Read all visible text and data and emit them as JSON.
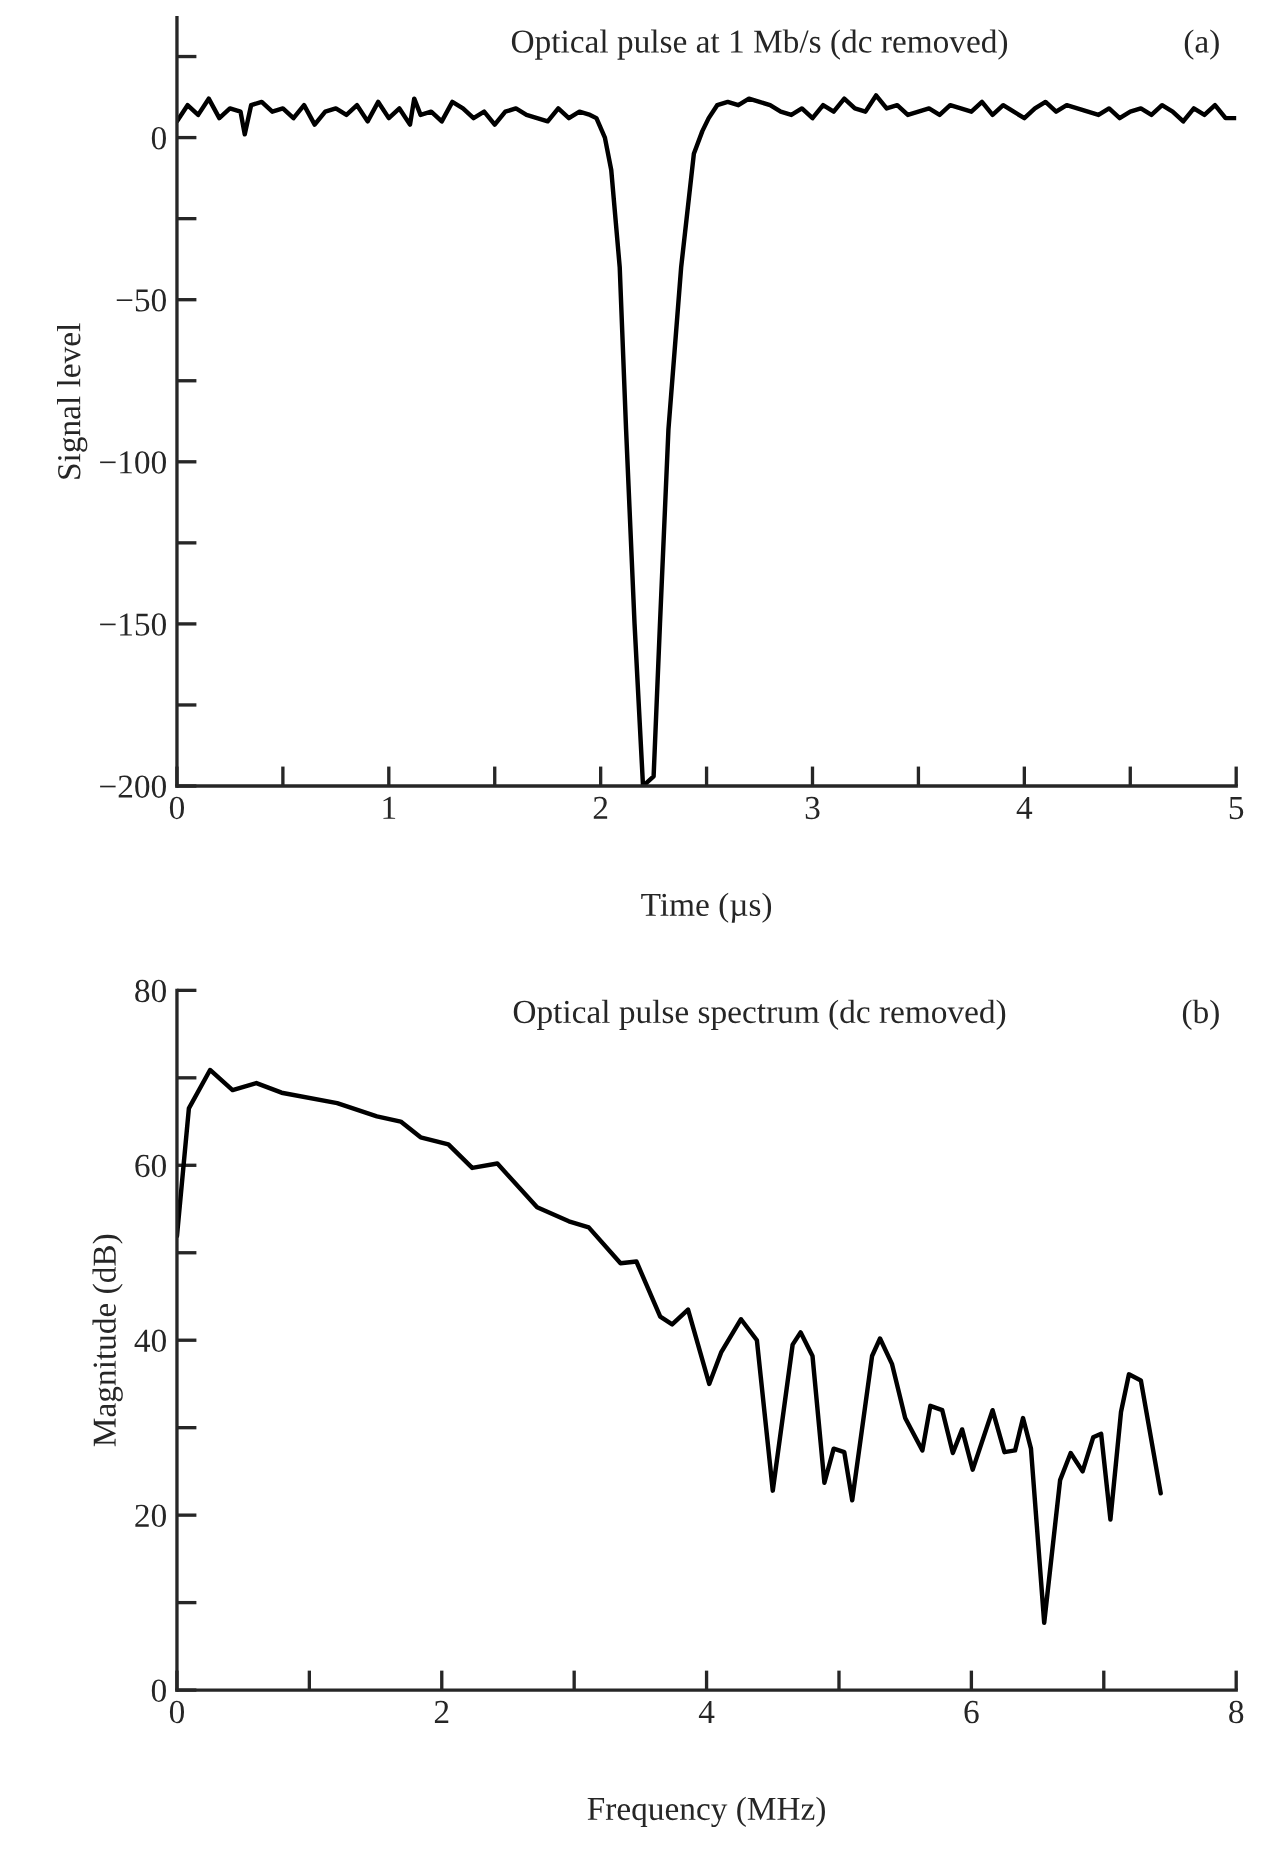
{
  "chart_data": [
    {
      "type": "line",
      "title": "Optical pulse at 1 Mb/s (dc removed)",
      "xlabel": "Time (µs)",
      "ylabel": "Signal level",
      "annotations": [
        "(a)"
      ],
      "x": [
        0,
        0.05,
        0.1,
        0.15,
        0.2,
        0.25,
        0.3,
        0.32,
        0.35,
        0.4,
        0.45,
        0.5,
        0.55,
        0.6,
        0.65,
        0.7,
        0.75,
        0.8,
        0.85,
        0.9,
        0.95,
        1.0,
        1.05,
        1.1,
        1.12,
        1.15,
        1.2,
        1.25,
        1.3,
        1.35,
        1.4,
        1.45,
        1.5,
        1.55,
        1.6,
        1.65,
        1.7,
        1.75,
        1.8,
        1.85,
        1.9,
        1.95,
        1.98,
        2.02,
        2.05,
        2.09,
        2.12,
        2.16,
        2.2,
        2.25,
        2.28,
        2.32,
        2.38,
        2.44,
        2.48,
        2.51,
        2.55,
        2.6,
        2.65,
        2.7,
        2.75,
        2.8,
        2.85,
        2.9,
        2.95,
        3.0,
        3.05,
        3.1,
        3.15,
        3.2,
        3.25,
        3.3,
        3.35,
        3.4,
        3.45,
        3.5,
        3.55,
        3.6,
        3.65,
        3.7,
        3.75,
        3.8,
        3.85,
        3.9,
        3.95,
        4.0,
        4.05,
        4.1,
        4.15,
        4.2,
        4.25,
        4.3,
        4.35,
        4.4,
        4.45,
        4.5,
        4.55,
        4.6,
        4.65,
        4.7,
        4.75,
        4.8,
        4.85,
        4.9,
        4.95,
        5.0
      ],
      "series": [
        {
          "color": "#000000",
          "values": [
            5,
            10,
            7,
            12,
            6,
            9,
            8,
            1,
            10,
            11,
            8,
            9,
            6,
            10,
            4,
            8,
            9,
            7,
            10,
            5,
            11,
            6,
            9,
            4,
            12,
            7,
            8,
            5,
            11,
            9,
            6,
            8,
            4,
            8,
            9,
            7,
            6,
            5,
            9,
            6,
            8,
            7,
            6,
            0,
            -10,
            -40,
            -90,
            -150,
            -200,
            -197,
            -150,
            -90,
            -40,
            -5,
            2,
            6,
            10,
            11,
            10,
            12,
            11,
            10,
            8,
            7,
            9,
            6,
            10,
            8,
            12,
            9,
            8,
            13,
            9,
            10,
            7,
            8,
            9,
            7,
            10,
            9,
            8,
            11,
            7,
            10,
            8,
            6,
            9,
            11,
            8,
            10,
            9,
            8,
            7,
            9,
            6,
            8,
            9,
            7,
            10,
            8,
            5,
            9,
            7,
            10,
            6,
            6
          ]
        }
      ],
      "xlim": [
        0,
        5
      ],
      "ylim": [
        -200,
        37
      ],
      "xticks": [
        0,
        {
          "value": 0.5,
          "label": null
        },
        1,
        {
          "value": 1.5,
          "label": null
        },
        2,
        {
          "value": 2.5,
          "label": null
        },
        3,
        {
          "value": 3.5,
          "label": null
        },
        4,
        {
          "value": 4.5,
          "label": null
        },
        5
      ],
      "yticks": [
        {
          "value": 25,
          "label": null
        },
        0,
        {
          "value": -25,
          "label": null
        },
        {
          "value": -50,
          "label": "−50"
        },
        {
          "value": -75,
          "label": null
        },
        {
          "value": -100,
          "label": "−100"
        },
        {
          "value": -125,
          "label": null
        },
        {
          "value": -150,
          "label": "−150"
        },
        {
          "value": -175,
          "label": null
        },
        {
          "value": -200,
          "label": "−200"
        }
      ],
      "grid": false,
      "legend": false
    },
    {
      "type": "line",
      "title": "Optical pulse spectrum (dc removed)",
      "xlabel": "Frequency (MHz)",
      "ylabel": "Magnitude (dB)",
      "annotations": [
        "(b)"
      ],
      "x": [
        0,
        0.09,
        0.25,
        0.42,
        0.6,
        0.79,
        1.21,
        1.51,
        1.69,
        1.84,
        2.05,
        2.23,
        2.42,
        2.72,
        2.96,
        3.11,
        3.35,
        3.47,
        3.65,
        3.74,
        3.86,
        4.02,
        4.11,
        4.26,
        4.38,
        4.5,
        4.65,
        4.71,
        4.8,
        4.89,
        4.96,
        5.04,
        5.1,
        5.25,
        5.31,
        5.4,
        5.5,
        5.63,
        5.69,
        5.78,
        5.86,
        5.93,
        6.01,
        6.16,
        6.25,
        6.33,
        6.39,
        6.45,
        6.55,
        6.67,
        6.75,
        6.84,
        6.92,
        6.98,
        7.05,
        7.13,
        7.19,
        7.28,
        7.43
      ],
      "series": [
        {
          "color": "#000000",
          "values": [
            51.9,
            66.5,
            70.9,
            68.6,
            69.4,
            68.3,
            67.1,
            65.6,
            65,
            63.2,
            62.4,
            59.7,
            60.2,
            55.2,
            53.6,
            52.9,
            48.8,
            49,
            42.7,
            41.8,
            43.5,
            35,
            38.6,
            42.4,
            40,
            22.8,
            39.5,
            40.9,
            38.2,
            23.7,
            27.6,
            27.2,
            21.7,
            38.2,
            40.2,
            37.3,
            31.1,
            27.4,
            32.5,
            32,
            27.1,
            29.8,
            25.2,
            32,
            27.2,
            27.4,
            31.1,
            27.6,
            7.7,
            24,
            27.1,
            25,
            28.9,
            29.3,
            19.5,
            31.8,
            36.1,
            35.4,
            22.5
          ]
        }
      ],
      "xlim": [
        0,
        8
      ],
      "ylim": [
        0,
        80
      ],
      "xticks": [
        0,
        {
          "value": 1,
          "label": null
        },
        2,
        {
          "value": 3,
          "label": null
        },
        4,
        {
          "value": 5,
          "label": null
        },
        6,
        {
          "value": 7,
          "label": null
        },
        8
      ],
      "yticks": [
        0,
        {
          "value": 10,
          "label": null
        },
        20,
        {
          "value": 30,
          "label": null
        },
        40,
        {
          "value": 50,
          "label": null
        },
        60,
        {
          "value": 70,
          "label": null
        },
        80
      ],
      "grid": false,
      "legend": false
    }
  ]
}
